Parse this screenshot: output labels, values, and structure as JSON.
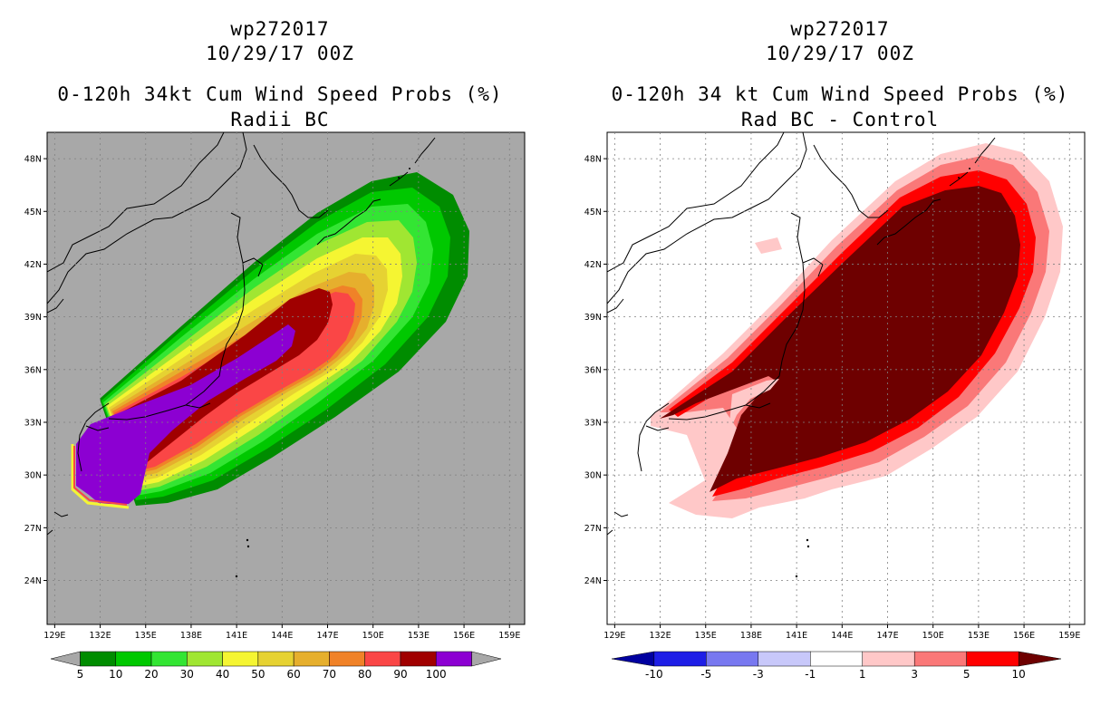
{
  "chart_data": [
    {
      "type": "heatmap",
      "storm_id": "wp272017",
      "date": "10/29/17 00Z",
      "title": "0-120h 34kt Cum Wind Speed Probs (%)",
      "subtitle": "Radii BC",
      "background": "#a8a8a8",
      "x_ticks": [
        "129E",
        "132E",
        "135E",
        "138E",
        "141E",
        "144E",
        "147E",
        "150E",
        "153E",
        "156E",
        "159E"
      ],
      "y_ticks": [
        "48N",
        "45N",
        "42N",
        "39N",
        "36N",
        "33N",
        "30N",
        "27N",
        "24N"
      ],
      "xlim": [
        128.5,
        160
      ],
      "ylim": [
        21.5,
        49.5
      ],
      "colorbar": {
        "labels": [
          "5",
          "10",
          "20",
          "30",
          "40",
          "50",
          "60",
          "70",
          "80",
          "90",
          "100"
        ],
        "colors": [
          "#008c00",
          "#00c800",
          "#33e533",
          "#a0e632",
          "#f5f532",
          "#e6d232",
          "#e6af2d",
          "#f08228",
          "#fa4646",
          "#a00000",
          "#8c00d2"
        ],
        "ends": [
          "#a8a8a8",
          "#a8a8a8"
        ]
      },
      "contour_levels": [
        5,
        10,
        20,
        30,
        40,
        50,
        60,
        70,
        80,
        90,
        100
      ]
    },
    {
      "type": "heatmap",
      "storm_id": "wp272017",
      "date": "10/29/17 00Z",
      "title": "0-120h 34 kt Cum Wind Speed Probs (%)",
      "subtitle": "Rad BC - Control",
      "background": "#ffffff",
      "x_ticks": [
        "129E",
        "132E",
        "135E",
        "138E",
        "141E",
        "144E",
        "147E",
        "150E",
        "153E",
        "156E",
        "159E"
      ],
      "y_ticks": [
        "48N",
        "45N",
        "42N",
        "39N",
        "36N",
        "33N",
        "30N",
        "27N",
        "24N"
      ],
      "xlim": [
        128.5,
        160
      ],
      "ylim": [
        21.5,
        49.5
      ],
      "colorbar": {
        "labels": [
          "-10",
          "-5",
          "-3",
          "-1",
          "1",
          "3",
          "5",
          "10"
        ],
        "colors": [
          "#1e1ee6",
          "#7878f0",
          "#c8c8fa",
          "#ffffff",
          "#ffc8c8",
          "#fa7878",
          "#ff0000"
        ],
        "ends": [
          "#0000a0",
          "#6e0000"
        ]
      },
      "contour_levels": [
        -10,
        -5,
        -3,
        -1,
        1,
        3,
        5,
        10
      ]
    }
  ]
}
